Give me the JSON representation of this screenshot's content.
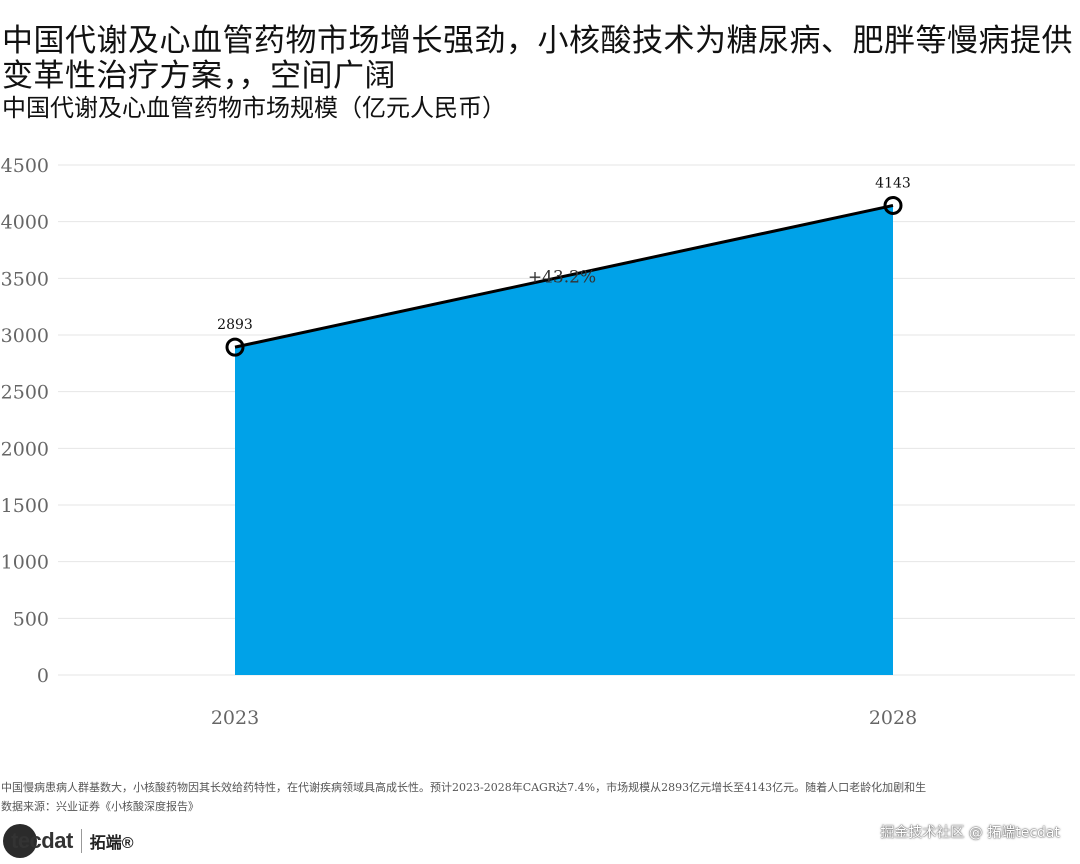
{
  "title": "中国代谢及心血管药物市场增长强劲，小核酸技术为糖尿病、肥胖等慢病提供变革性治疗方案，，空间广阔",
  "subtitle": "中国代谢及心血管药物市场规模（亿元人民币）",
  "chart_data": {
    "type": "area",
    "categories": [
      "2023",
      "2028"
    ],
    "values": [
      2893,
      4143
    ],
    "data_labels": [
      "2893",
      "4143"
    ],
    "annotation": "+43.2%",
    "ylim": [
      0,
      4500
    ],
    "yticks": [
      "0",
      "500",
      "1000",
      "1500",
      "2000",
      "2500",
      "3000",
      "3500",
      "4000",
      "4500"
    ],
    "grid": true,
    "fill_color": "#00a2e8",
    "line_color": "#000000"
  },
  "notes": {
    "line1": "中国慢病患病人群基数大，小核酸药物因其长效给药特性，在代谢疾病领域具高成长性。预计2023-2028年CAGR达7.4%，市场规模从2893亿元增长至4143亿元。随着人口老龄化加剧和生",
    "line2": "数据来源：兴业证券《小核酸深度报告》"
  },
  "brand": {
    "logo": "tecdat",
    "name": "拓端®"
  },
  "watermark": "掘金技术社区 @ 拓端tecdat"
}
